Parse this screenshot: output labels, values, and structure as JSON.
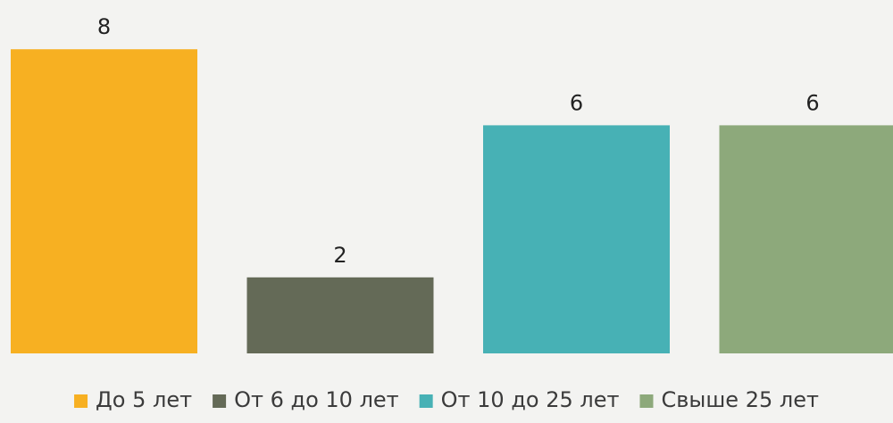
{
  "chart_data": {
    "type": "bar",
    "categories": [
      "До 5 лет",
      "От 6 до 10 лет",
      "От 10 до 25 лет",
      "Свыше 25 лет"
    ],
    "series": [
      {
        "values": [
          8,
          2,
          6,
          6
        ]
      }
    ],
    "colors": [
      "#f7b022",
      "#646a57",
      "#47b1b5",
      "#8da97b"
    ],
    "ylim": [
      0,
      10
    ],
    "grid": false,
    "legend": "bottom",
    "data_labels": true
  }
}
